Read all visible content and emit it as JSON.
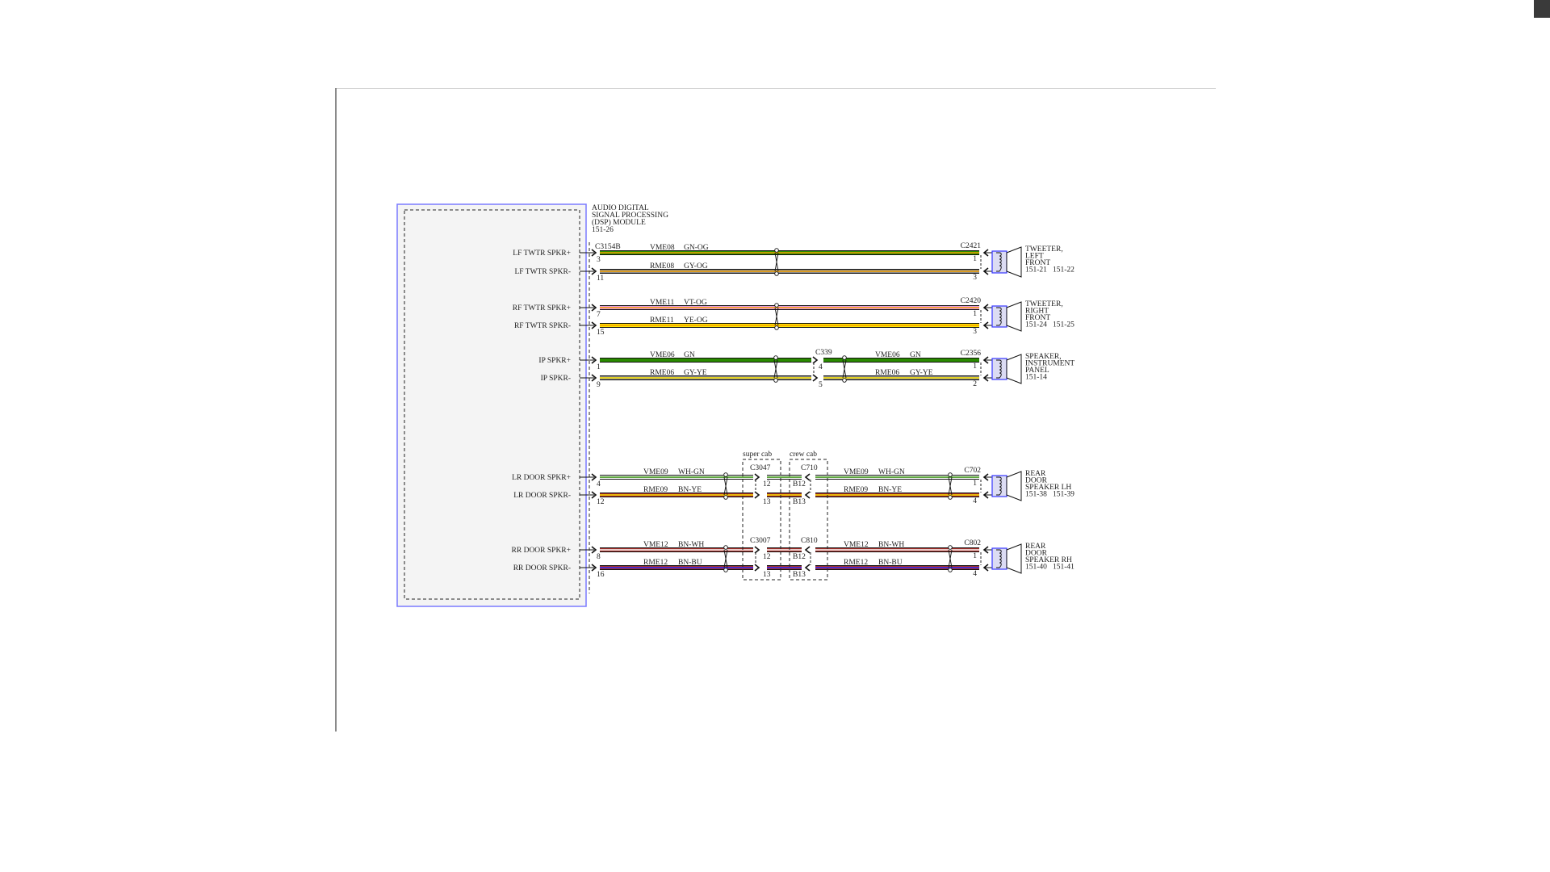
{
  "module": {
    "title_lines": [
      "AUDIO DIGITAL",
      "SIGNAL PROCESSING",
      "(DSP) MODULE",
      "151-26"
    ],
    "connector": "C3154B"
  },
  "wire_colors": {
    "GN": "#2a8a00",
    "OG": "#f5a100",
    "GY": "#8c8c8c",
    "VT": "#e79be6",
    "YE": "#ffe600",
    "WH": "#ffffff",
    "BN": "#a8302a",
    "BU": "#2b2bff"
  },
  "cab_options": [
    {
      "label": "super cab"
    },
    {
      "label": "crew cab"
    }
  ],
  "groups": [
    {
      "type": "direct",
      "end_connector": "C2421",
      "device": [
        "TWEETER,",
        "LEFT",
        "FRONT"
      ],
      "refs": [
        "151-21",
        "151-22"
      ],
      "wires": [
        {
          "label": "LF TWTR SPKR+",
          "pin": "3",
          "circuit": "VME08",
          "color": "GN-OG",
          "end_pin": "1"
        },
        {
          "label": "LF TWTR SPKR-",
          "pin": "11",
          "circuit": "RME08",
          "color": "GY-OG",
          "end_pin": "3"
        }
      ]
    },
    {
      "type": "direct",
      "end_connector": "C2420",
      "device": [
        "TWEETER,",
        "RIGHT",
        "FRONT"
      ],
      "refs": [
        "151-24",
        "151-25"
      ],
      "wires": [
        {
          "label": "RF TWTR SPKR+",
          "pin": "7",
          "circuit": "VME11",
          "color": "VT-OG",
          "end_pin": "1"
        },
        {
          "label": "RF TWTR SPKR-",
          "pin": "15",
          "circuit": "RME11",
          "color": "YE-OG",
          "end_pin": "3"
        }
      ]
    },
    {
      "type": "inline",
      "inline_connector": "C339",
      "end_connector": "C2356",
      "device": [
        "SPEAKER,",
        "INSTRUMENT",
        "PANEL"
      ],
      "refs": [
        "151-14"
      ],
      "wires": [
        {
          "label": "IP SPKR+",
          "pin": "1",
          "circuit": "VME06",
          "color": "GN",
          "inline_pin": "4",
          "end_pin": "1"
        },
        {
          "label": "IP SPKR-",
          "pin": "9",
          "circuit": "RME06",
          "color": "GY-YE",
          "inline_pin": "5",
          "end_pin": "2"
        }
      ]
    },
    {
      "type": "cab",
      "super_connector": "C3047",
      "crew_connector": "C710",
      "end_connector": "C702",
      "device": [
        "REAR",
        "DOOR",
        "SPEAKER LH"
      ],
      "refs": [
        "151-38",
        "151-39"
      ],
      "wires": [
        {
          "label": "LR DOOR SPKR+",
          "pin": "4",
          "circuit": "VME09",
          "color": "WH-GN",
          "super_pin": "12",
          "crew_pin": "B12",
          "end_pin": "1"
        },
        {
          "label": "LR DOOR SPKR-",
          "pin": "12",
          "circuit": "RME09",
          "color": "BN-YE",
          "super_pin": "13",
          "crew_pin": "B13",
          "end_pin": "4"
        }
      ]
    },
    {
      "type": "cab",
      "super_connector": "C3007",
      "crew_connector": "C810",
      "end_connector": "C802",
      "device": [
        "REAR",
        "DOOR",
        "SPEAKER RH"
      ],
      "refs": [
        "151-40",
        "151-41"
      ],
      "wires": [
        {
          "label": "RR DOOR SPKR+",
          "pin": "8",
          "circuit": "VME12",
          "color": "BN-WH",
          "super_pin": "12",
          "crew_pin": "B12",
          "end_pin": "1"
        },
        {
          "label": "RR DOOR SPKR-",
          "pin": "16",
          "circuit": "RME12",
          "color": "BN-BU",
          "super_pin": "13",
          "crew_pin": "B13",
          "end_pin": "4"
        }
      ]
    }
  ]
}
